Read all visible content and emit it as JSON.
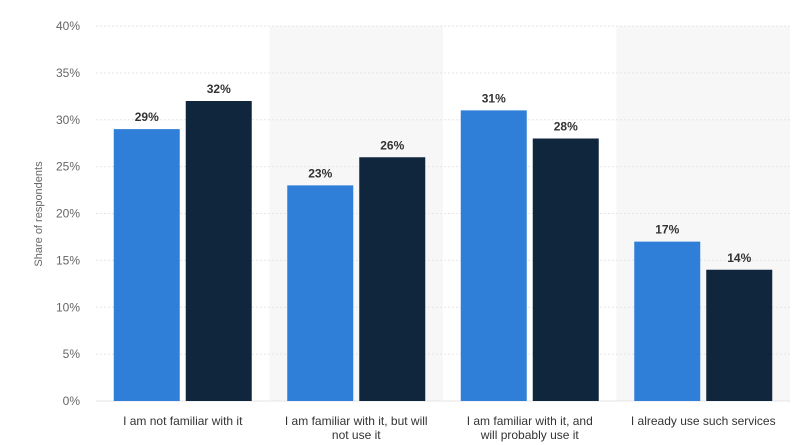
{
  "chart_data": {
    "type": "bar",
    "ylabel": "Share of respondents",
    "ylim": [
      0,
      40
    ],
    "yticks": [
      0,
      5,
      10,
      15,
      20,
      25,
      30,
      35,
      40
    ],
    "ytick_suffix": "%",
    "grid": true,
    "categories": [
      "I am not familiar with it",
      "I am familiar with it, but will not use it",
      "I am familiar with it, and will probably use it",
      "I already use such services"
    ],
    "category_lines": [
      [
        "I am not familiar with it"
      ],
      [
        "I am familiar with it, but will",
        "not use it"
      ],
      [
        "I am familiar with it, and",
        "will probably use it"
      ],
      [
        "I already use such services"
      ]
    ],
    "series": [
      {
        "values": [
          29,
          23,
          31,
          17
        ],
        "color": "#2f7ed8"
      },
      {
        "values": [
          32,
          26,
          28,
          14
        ],
        "color": "#10263d"
      }
    ],
    "value_labels": [
      [
        "29%",
        "23%",
        "31%",
        "17%"
      ],
      [
        "32%",
        "26%",
        "28%",
        "14%"
      ]
    ],
    "band_color": "#f7f7f7",
    "grid_color": "#e6e6e6"
  }
}
